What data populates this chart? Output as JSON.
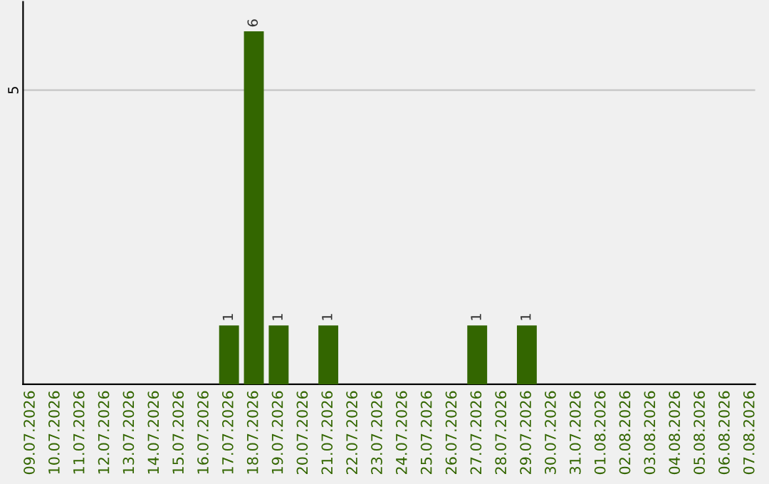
{
  "chart_data": {
    "type": "bar",
    "categories": [
      "09.07.2026",
      "10.07.2026",
      "11.07.2026",
      "12.07.2026",
      "13.07.2026",
      "14.07.2026",
      "15.07.2026",
      "16.07.2026",
      "17.07.2026",
      "18.07.2026",
      "19.07.2026",
      "20.07.2026",
      "21.07.2026",
      "22.07.2026",
      "23.07.2026",
      "24.07.2026",
      "25.07.2026",
      "26.07.2026",
      "27.07.2026",
      "28.07.2026",
      "29.07.2026",
      "30.07.2026",
      "31.07.2026",
      "01.08.2026",
      "02.08.2026",
      "03.08.2026",
      "04.08.2026",
      "05.08.2026",
      "06.08.2026",
      "07.08.2026"
    ],
    "values": [
      0,
      0,
      0,
      0,
      0,
      0,
      0,
      0,
      1,
      6,
      1,
      0,
      1,
      0,
      0,
      0,
      0,
      0,
      1,
      0,
      1,
      0,
      0,
      0,
      0,
      0,
      0,
      0,
      0,
      0
    ],
    "value_labels": [
      null,
      null,
      null,
      null,
      null,
      null,
      null,
      null,
      "1",
      "6",
      "1",
      null,
      "1",
      null,
      null,
      null,
      null,
      null,
      "1",
      null,
      "1",
      null,
      null,
      null,
      null,
      null,
      null,
      null,
      null,
      null
    ],
    "color": "#336600",
    "ylim": [
      0,
      6.5
    ],
    "yticks": [
      5
    ],
    "grid": "y",
    "legend": false
  }
}
